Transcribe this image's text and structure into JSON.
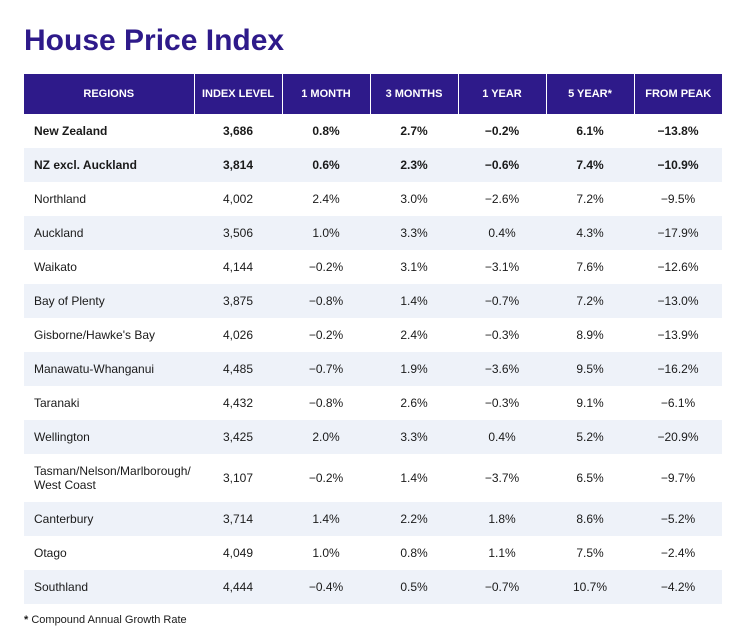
{
  "title": "House Price Index",
  "table": {
    "columns": [
      "REGIONS",
      "INDEX LEVEL",
      "1 MONTH",
      "3 MONTHS",
      "1 YEAR",
      "5 YEAR*",
      "FROM PEAK"
    ],
    "column_widths": [
      "170px",
      "auto",
      "auto",
      "auto",
      "auto",
      "auto",
      "auto"
    ],
    "header_bg": "#2e1a8a",
    "header_color": "#ffffff",
    "header_fontsize": 11,
    "body_fontsize": 12,
    "alt_row_bg": "#eef2f9",
    "text_color": "#1a1a1a",
    "rows": [
      {
        "bold": true,
        "alt": false,
        "cells": [
          "New Zealand",
          "3,686",
          "0.8%",
          "2.7%",
          "−0.2%",
          "6.1%",
          "−13.8%"
        ]
      },
      {
        "bold": true,
        "alt": true,
        "cells": [
          "NZ excl. Auckland",
          "3,814",
          "0.6%",
          "2.3%",
          "−0.6%",
          "7.4%",
          "−10.9%"
        ]
      },
      {
        "bold": false,
        "alt": false,
        "cells": [
          "Northland",
          "4,002",
          "2.4%",
          "3.0%",
          "−2.6%",
          "7.2%",
          "−9.5%"
        ]
      },
      {
        "bold": false,
        "alt": true,
        "cells": [
          "Auckland",
          "3,506",
          "1.0%",
          "3.3%",
          "0.4%",
          "4.3%",
          "−17.9%"
        ]
      },
      {
        "bold": false,
        "alt": false,
        "cells": [
          "Waikato",
          "4,144",
          "−0.2%",
          "3.1%",
          "−3.1%",
          "7.6%",
          "−12.6%"
        ]
      },
      {
        "bold": false,
        "alt": true,
        "cells": [
          "Bay of Plenty",
          "3,875",
          "−0.8%",
          "1.4%",
          "−0.7%",
          "7.2%",
          "−13.0%"
        ]
      },
      {
        "bold": false,
        "alt": false,
        "cells": [
          "Gisborne/Hawke's Bay",
          "4,026",
          "−0.2%",
          "2.4%",
          "−0.3%",
          "8.9%",
          "−13.9%"
        ]
      },
      {
        "bold": false,
        "alt": true,
        "cells": [
          "Manawatu-Whanganui",
          "4,485",
          "−0.7%",
          "1.9%",
          "−3.6%",
          "9.5%",
          "−16.2%"
        ]
      },
      {
        "bold": false,
        "alt": false,
        "cells": [
          "Taranaki",
          "4,432",
          "−0.8%",
          "2.6%",
          "−0.3%",
          "9.1%",
          "−6.1%"
        ]
      },
      {
        "bold": false,
        "alt": true,
        "cells": [
          "Wellington",
          "3,425",
          "2.0%",
          "3.3%",
          "0.4%",
          "5.2%",
          "−20.9%"
        ]
      },
      {
        "bold": false,
        "alt": false,
        "cells": [
          "Tasman/Nelson/Marlborough/\nWest Coast",
          "3,107",
          "−0.2%",
          "1.4%",
          "−3.7%",
          "6.5%",
          "−9.7%"
        ]
      },
      {
        "bold": false,
        "alt": true,
        "cells": [
          "Canterbury",
          "3,714",
          "1.4%",
          "2.2%",
          "1.8%",
          "8.6%",
          "−5.2%"
        ]
      },
      {
        "bold": false,
        "alt": false,
        "cells": [
          "Otago",
          "4,049",
          "1.0%",
          "0.8%",
          "1.1%",
          "7.5%",
          "−2.4%"
        ]
      },
      {
        "bold": false,
        "alt": true,
        "cells": [
          "Southland",
          "4,444",
          "−0.4%",
          "0.5%",
          "−0.7%",
          "10.7%",
          "−4.2%"
        ]
      }
    ]
  },
  "footnote": {
    "marker": "*",
    "text": "Compound Annual Growth Rate"
  },
  "colors": {
    "title": "#2e1a8a",
    "background": "#ffffff"
  }
}
